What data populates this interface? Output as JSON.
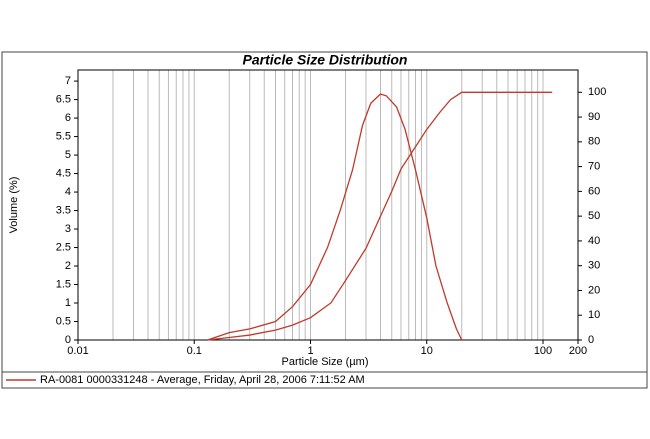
{
  "chart_data": {
    "type": "line",
    "title": "Particle Size Distribution",
    "xlabel": "Particle Size (µm)",
    "ylabel": "Volume (%)",
    "xscale": "log",
    "xlim": [
      0.01,
      200
    ],
    "xticks": [
      0.01,
      0.1,
      1,
      10,
      100,
      200
    ],
    "ylim": [
      0,
      7.3
    ],
    "yticks": [
      0,
      0.5,
      1,
      1.5,
      2,
      2.5,
      3,
      3.5,
      4,
      4.5,
      5,
      5.5,
      6,
      6.5,
      7
    ],
    "y2lim": [
      0,
      109
    ],
    "y2ticks": [
      0,
      10,
      20,
      30,
      40,
      50,
      60,
      70,
      80,
      90,
      100
    ],
    "grid": true,
    "legend_label": "RA-0081 0000331248 - Average, Friday, April 28, 2006 7:11:52 AM",
    "color": "#c0392b",
    "series": [
      {
        "x": [
          0.13,
          0.2,
          0.3,
          0.5,
          0.7,
          1,
          1.4,
          1.8,
          2.3,
          2.8,
          3.3,
          4,
          4.5,
          5.5,
          6.5,
          8,
          10,
          12,
          15,
          18,
          20
        ],
        "values": [
          0,
          0.2,
          0.3,
          0.5,
          0.9,
          1.5,
          2.5,
          3.5,
          4.6,
          5.8,
          6.4,
          6.65,
          6.6,
          6.3,
          5.7,
          4.6,
          3.3,
          2,
          1,
          0.3,
          0
        ]
      },
      {
        "axis": "y2",
        "x": [
          0.13,
          0.2,
          0.3,
          0.5,
          0.7,
          1,
          1.5,
          2,
          3,
          4,
          5,
          6,
          8,
          10,
          13,
          16,
          20,
          120
        ],
        "values": [
          0,
          1,
          2,
          4,
          6,
          9,
          15,
          24,
          37,
          50,
          60,
          69,
          78,
          85,
          92,
          97,
          100,
          100
        ]
      }
    ]
  }
}
